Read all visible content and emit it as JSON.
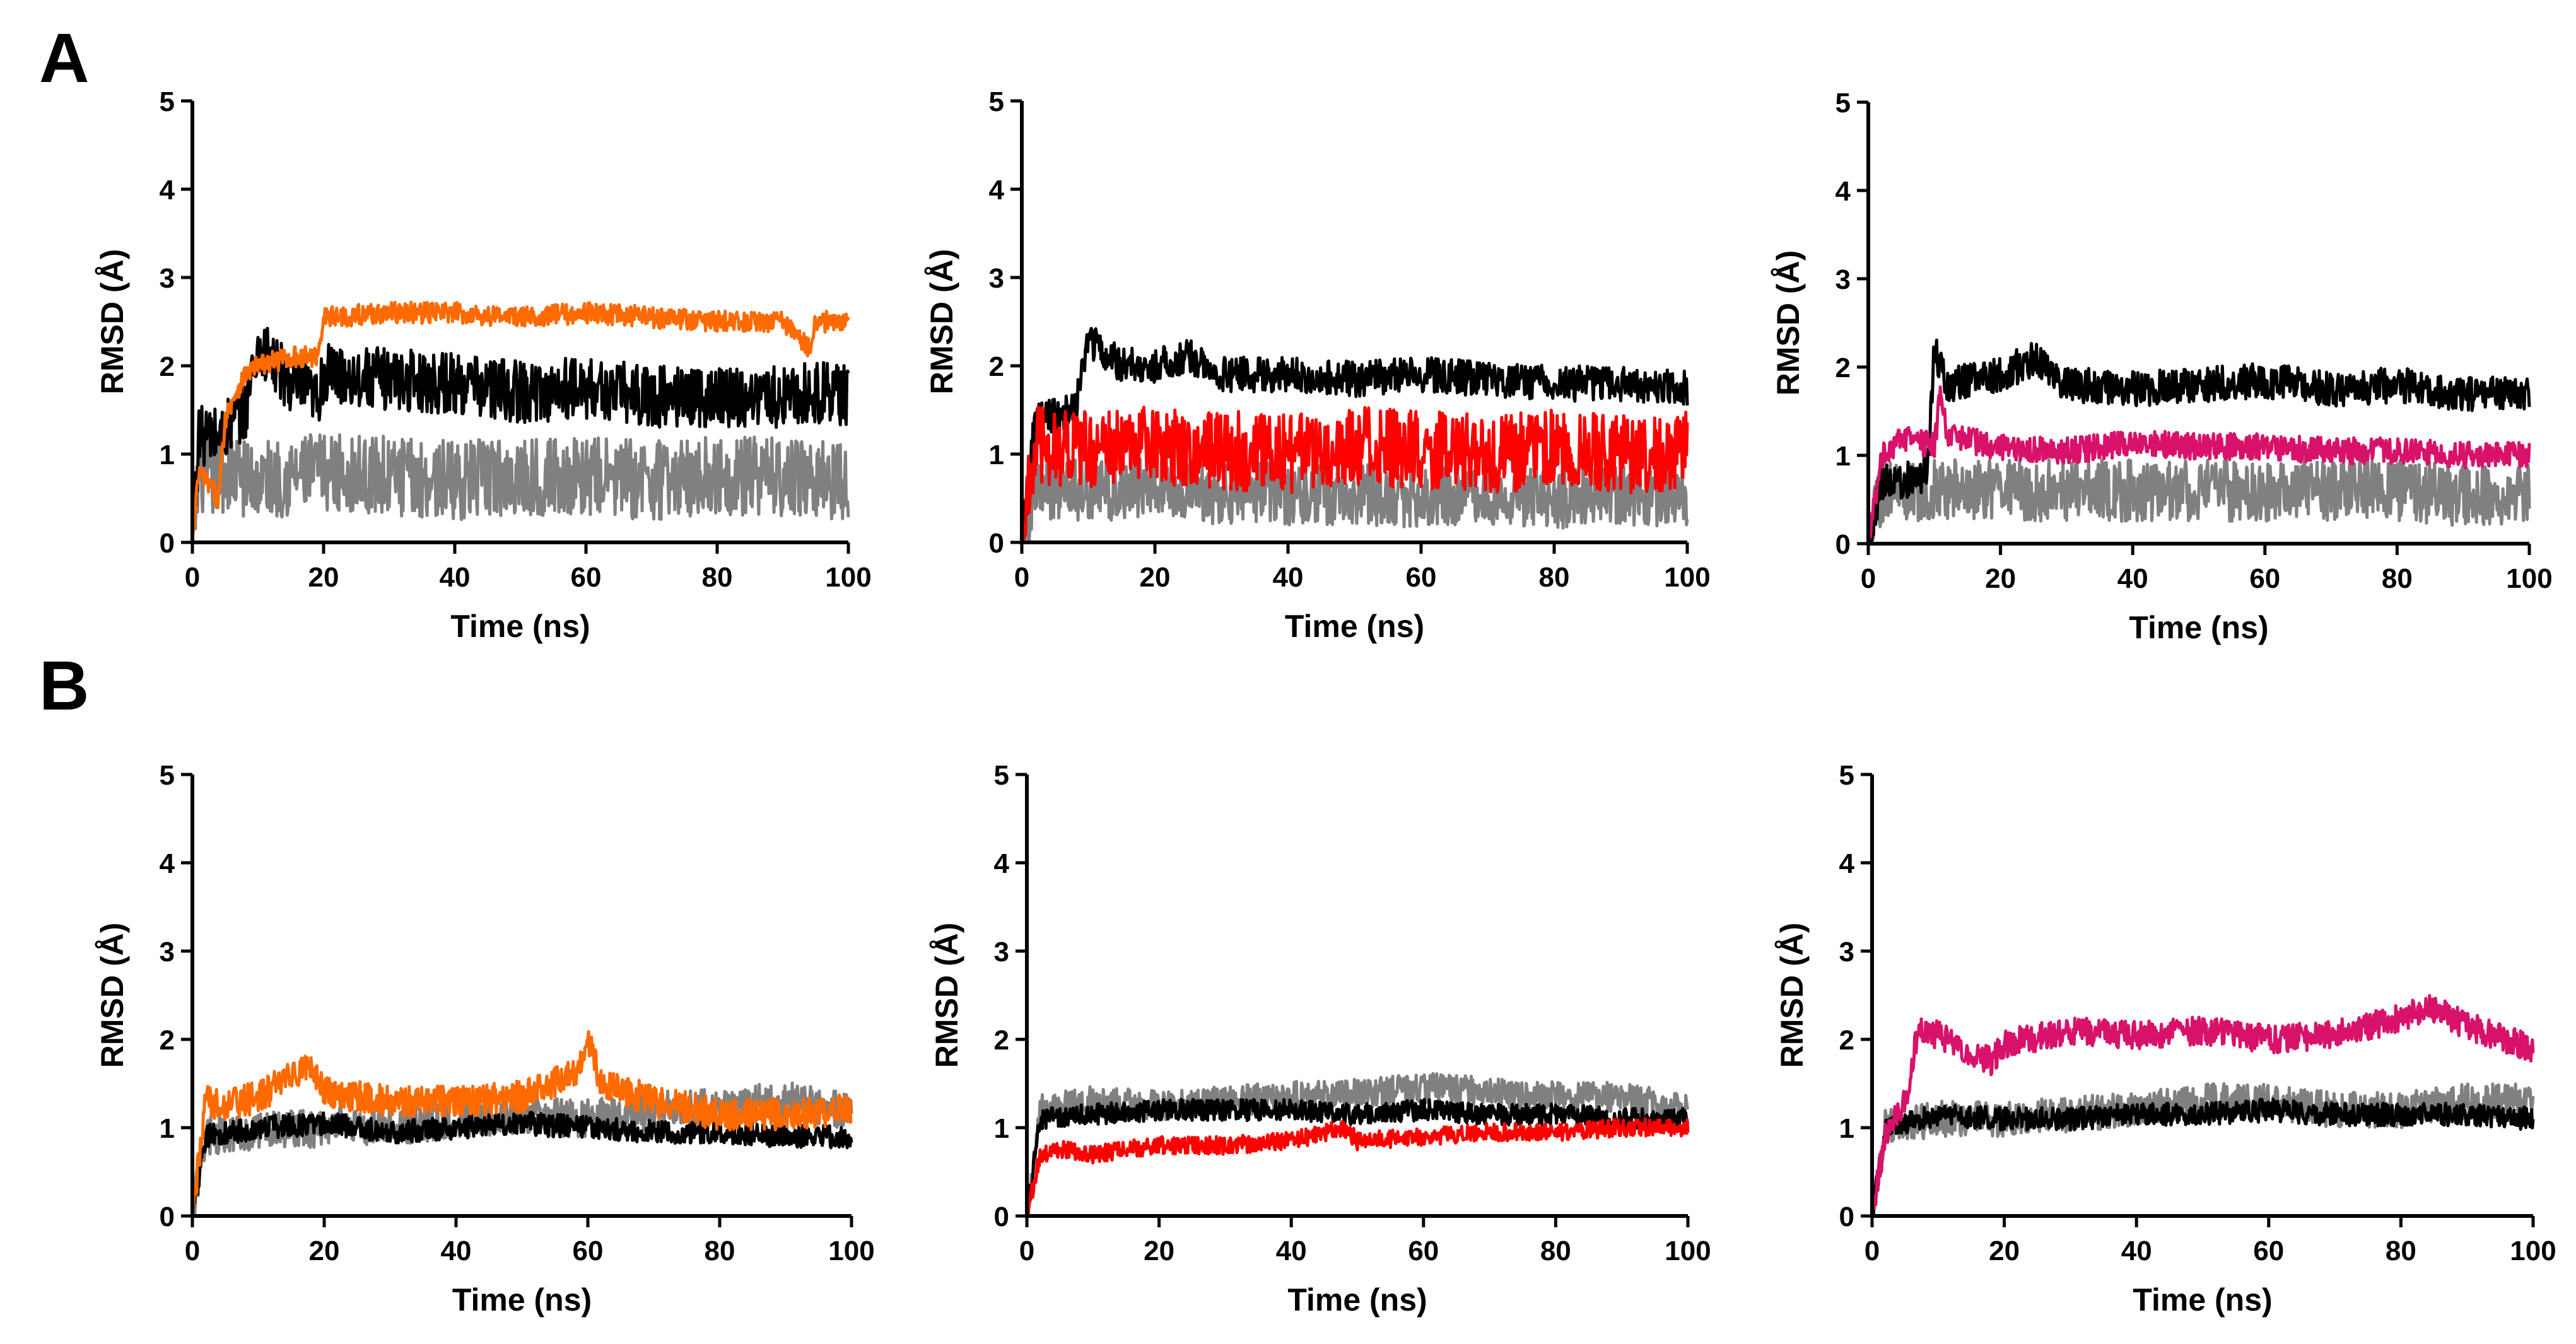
{
  "figure": {
    "panel_labels": [
      "A",
      "B"
    ]
  },
  "chart_data": [
    {
      "id": "A1",
      "type": "line",
      "xlabel": "Time (ns)",
      "ylabel": "RMSD (Å)",
      "xlim": [
        0,
        100
      ],
      "ylim": [
        0,
        5
      ],
      "xticks": [
        0,
        20,
        40,
        60,
        80,
        100
      ],
      "yticks": [
        0,
        1,
        2,
        3,
        4,
        5
      ],
      "series": [
        {
          "name": "gray",
          "color": "#808080",
          "x": [
            0,
            1,
            3,
            5,
            10,
            20,
            30,
            40,
            50,
            60,
            70,
            80,
            90,
            100
          ],
          "y": [
            0,
            0.8,
            0.7,
            0.8,
            0.7,
            0.8,
            0.75,
            0.7,
            0.75,
            0.75,
            0.7,
            0.75,
            0.75,
            0.7
          ],
          "noise": 0.45
        },
        {
          "name": "black",
          "color": "#000000",
          "x": [
            0,
            1,
            4,
            8,
            10,
            15,
            19,
            20,
            30,
            40,
            50,
            60,
            70,
            80,
            90,
            95,
            100
          ],
          "y": [
            0,
            1.2,
            1.2,
            1.5,
            2.2,
            1.8,
            1.6,
            1.9,
            1.85,
            1.8,
            1.7,
            1.75,
            1.65,
            1.65,
            1.65,
            1.7,
            1.65
          ],
          "noise": 0.35
        },
        {
          "name": "orange",
          "color": "#FF6A00",
          "x": [
            0,
            1,
            4,
            5,
            6,
            8,
            10,
            15,
            19,
            20,
            30,
            40,
            50,
            60,
            70,
            80,
            90,
            94,
            95,
            100
          ],
          "y": [
            0,
            0.8,
            0.5,
            1.4,
            1.6,
            1.9,
            2.0,
            2.1,
            2.1,
            2.55,
            2.6,
            2.6,
            2.55,
            2.6,
            2.55,
            2.5,
            2.5,
            2.2,
            2.5,
            2.5
          ],
          "noise": 0.12
        }
      ]
    },
    {
      "id": "A2",
      "type": "line",
      "xlabel": "Time (ns)",
      "ylabel": "RMSD (Å)",
      "xlim": [
        0,
        100
      ],
      "ylim": [
        0,
        5
      ],
      "xticks": [
        0,
        20,
        40,
        60,
        80,
        100
      ],
      "yticks": [
        0,
        1,
        2,
        3,
        4,
        5
      ],
      "series": [
        {
          "name": "gray",
          "color": "#808080",
          "x": [
            0,
            2,
            10,
            20,
            30,
            40,
            50,
            60,
            70,
            80,
            90,
            100
          ],
          "y": [
            0,
            0.6,
            0.6,
            0.6,
            0.55,
            0.55,
            0.55,
            0.5,
            0.55,
            0.5,
            0.55,
            0.5
          ],
          "noise": 0.35
        },
        {
          "name": "black",
          "color": "#000000",
          "x": [
            0,
            2,
            8,
            10,
            15,
            20,
            25,
            30,
            40,
            50,
            60,
            70,
            80,
            90,
            100
          ],
          "y": [
            0,
            1.4,
            1.5,
            2.3,
            2.0,
            2.0,
            2.1,
            1.9,
            1.9,
            1.85,
            1.9,
            1.85,
            1.8,
            1.8,
            1.75
          ],
          "noise": 0.2
        },
        {
          "name": "red",
          "color": "#FF0000",
          "x": [
            0,
            2,
            10,
            20,
            30,
            40,
            50,
            60,
            70,
            80,
            90,
            100
          ],
          "y": [
            0,
            1.1,
            1.05,
            1.1,
            1.05,
            1.0,
            1.1,
            1.05,
            1.0,
            1.05,
            1.0,
            1.05
          ],
          "noise": 0.45
        }
      ]
    },
    {
      "id": "A3",
      "type": "line",
      "xlabel": "Time (ns)",
      "ylabel": "RMSD (Å)",
      "xlim": [
        0,
        100
      ],
      "ylim": [
        0,
        5
      ],
      "xticks": [
        0,
        20,
        40,
        60,
        80,
        100
      ],
      "yticks": [
        0,
        1,
        2,
        3,
        4,
        5
      ],
      "series": [
        {
          "name": "gray",
          "color": "#808080",
          "x": [
            0,
            2,
            10,
            20,
            30,
            40,
            50,
            60,
            70,
            80,
            90,
            100
          ],
          "y": [
            0,
            0.6,
            0.6,
            0.6,
            0.6,
            0.6,
            0.6,
            0.6,
            0.6,
            0.6,
            0.55,
            0.55
          ],
          "noise": 0.35
        },
        {
          "name": "black",
          "color": "#000000",
          "x": [
            0,
            2,
            5,
            9,
            10,
            12,
            20,
            25,
            30,
            40,
            50,
            60,
            70,
            80,
            90,
            100
          ],
          "y": [
            0,
            0.7,
            0.7,
            0.8,
            2.2,
            1.8,
            1.9,
            2.1,
            1.8,
            1.75,
            1.8,
            1.85,
            1.75,
            1.8,
            1.7,
            1.7
          ],
          "noise": 0.2
        },
        {
          "name": "magenta",
          "color": "#D8126A",
          "x": [
            0,
            2,
            5,
            10,
            11,
            12,
            20,
            30,
            40,
            50,
            60,
            70,
            80,
            90,
            100
          ],
          "y": [
            0,
            1.0,
            1.2,
            1.1,
            1.8,
            1.2,
            1.1,
            1.05,
            1.15,
            1.1,
            1.1,
            1.05,
            1.05,
            1.0,
            1.0
          ],
          "noise": 0.15
        }
      ]
    },
    {
      "id": "B1",
      "type": "line",
      "xlabel": "Time (ns)",
      "ylabel": "RMSD (Å)",
      "xlim": [
        0,
        100
      ],
      "ylim": [
        0,
        5
      ],
      "xticks": [
        0,
        20,
        40,
        60,
        80,
        100
      ],
      "yticks": [
        0,
        1,
        2,
        3,
        4,
        5
      ],
      "series": [
        {
          "name": "gray",
          "color": "#808080",
          "x": [
            0,
            2,
            10,
            20,
            30,
            40,
            50,
            60,
            70,
            80,
            90,
            100
          ],
          "y": [
            0,
            0.9,
            0.95,
            1.0,
            1.0,
            1.1,
            1.15,
            1.1,
            1.2,
            1.25,
            1.3,
            1.2
          ],
          "noise": 0.22
        },
        {
          "name": "black",
          "color": "#000000",
          "x": [
            0,
            2,
            10,
            20,
            30,
            40,
            50,
            60,
            70,
            80,
            90,
            100
          ],
          "y": [
            0,
            0.9,
            1.0,
            1.05,
            0.95,
            1.0,
            1.05,
            1.0,
            0.95,
            0.95,
            0.9,
            0.9
          ],
          "noise": 0.13
        },
        {
          "name": "orange",
          "color": "#FF6A00",
          "x": [
            0,
            2,
            5,
            10,
            18,
            20,
            30,
            40,
            50,
            58,
            60,
            62,
            70,
            80,
            90,
            100
          ],
          "y": [
            0,
            1.3,
            1.25,
            1.35,
            1.7,
            1.4,
            1.3,
            1.3,
            1.35,
            1.6,
            2.0,
            1.5,
            1.3,
            1.15,
            1.15,
            1.2
          ],
          "noise": 0.18
        }
      ]
    },
    {
      "id": "B2",
      "type": "line",
      "xlabel": "Time (ns)",
      "ylabel": "RMSD (Å)",
      "xlim": [
        0,
        100
      ],
      "ylim": [
        0,
        5
      ],
      "xticks": [
        0,
        20,
        40,
        60,
        80,
        100
      ],
      "yticks": [
        0,
        1,
        2,
        3,
        4,
        5
      ],
      "series": [
        {
          "name": "gray",
          "color": "#808080",
          "x": [
            0,
            2,
            10,
            20,
            30,
            40,
            50,
            60,
            70,
            80,
            90,
            100
          ],
          "y": [
            0,
            1.2,
            1.3,
            1.25,
            1.3,
            1.35,
            1.4,
            1.45,
            1.4,
            1.35,
            1.35,
            1.2
          ],
          "noise": 0.17
        },
        {
          "name": "black",
          "color": "#000000",
          "x": [
            0,
            2,
            10,
            20,
            30,
            40,
            50,
            60,
            70,
            80,
            90,
            100
          ],
          "y": [
            0,
            1.1,
            1.15,
            1.2,
            1.2,
            1.2,
            1.15,
            1.2,
            1.15,
            1.15,
            1.1,
            1.1
          ],
          "noise": 0.12
        },
        {
          "name": "red",
          "color": "#FF0000",
          "x": [
            0,
            2,
            5,
            10,
            20,
            30,
            40,
            48,
            50,
            60,
            70,
            80,
            90,
            100
          ],
          "y": [
            0,
            0.7,
            0.75,
            0.7,
            0.8,
            0.8,
            0.85,
            1.0,
            0.85,
            0.9,
            0.95,
            0.95,
            1.0,
            1.0
          ],
          "noise": 0.1
        }
      ]
    },
    {
      "id": "B3",
      "type": "line",
      "xlabel": "Time (ns)",
      "ylabel": "RMSD (Å)",
      "xlim": [
        0,
        100
      ],
      "ylim": [
        0,
        5
      ],
      "xticks": [
        0,
        20,
        40,
        60,
        80,
        100
      ],
      "yticks": [
        0,
        1,
        2,
        3,
        4,
        5
      ],
      "series": [
        {
          "name": "gray",
          "color": "#808080",
          "x": [
            0,
            2,
            10,
            20,
            30,
            40,
            50,
            60,
            70,
            80,
            90,
            100
          ],
          "y": [
            0,
            1.0,
            1.1,
            1.1,
            1.15,
            1.2,
            1.3,
            1.3,
            1.2,
            1.2,
            1.3,
            1.3
          ],
          "noise": 0.2
        },
        {
          "name": "black",
          "color": "#000000",
          "x": [
            0,
            2,
            10,
            20,
            30,
            40,
            50,
            60,
            70,
            80,
            90,
            100
          ],
          "y": [
            0,
            1.0,
            1.15,
            1.1,
            1.1,
            1.15,
            1.15,
            1.2,
            1.15,
            1.15,
            1.15,
            1.1
          ],
          "noise": 0.13
        },
        {
          "name": "magenta",
          "color": "#D8126A",
          "x": [
            0,
            2,
            5,
            7,
            10,
            18,
            20,
            30,
            40,
            50,
            60,
            70,
            80,
            85,
            90,
            100
          ],
          "y": [
            0,
            0.9,
            1.3,
            2.1,
            2.05,
            1.75,
            1.95,
            2.1,
            2.05,
            2.1,
            2.0,
            2.05,
            2.25,
            2.35,
            2.15,
            1.9
          ],
          "noise": 0.16
        }
      ]
    }
  ]
}
